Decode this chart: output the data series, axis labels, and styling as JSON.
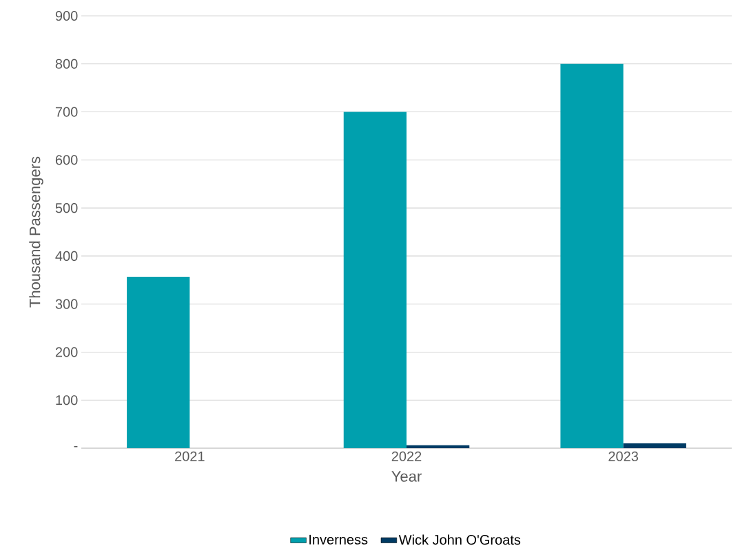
{
  "chart_data": {
    "type": "bar",
    "xlabel": "Year",
    "ylabel": "Thousand Passengers",
    "categories": [
      "2021",
      "2022",
      "2023"
    ],
    "series": [
      {
        "name": "Inverness",
        "color": "#00a0ae",
        "values": [
          357,
          700,
          800
        ]
      },
      {
        "name": "Wick John O'Groats",
        "color": "#003b64",
        "values": [
          null,
          6,
          10
        ]
      }
    ],
    "ylim": [
      0,
      900
    ],
    "yticks": [
      {
        "value": 0,
        "label": "-"
      },
      100,
      200,
      300,
      400,
      500,
      600,
      700,
      800,
      900
    ],
    "grid": "y",
    "legend": "bottom"
  }
}
